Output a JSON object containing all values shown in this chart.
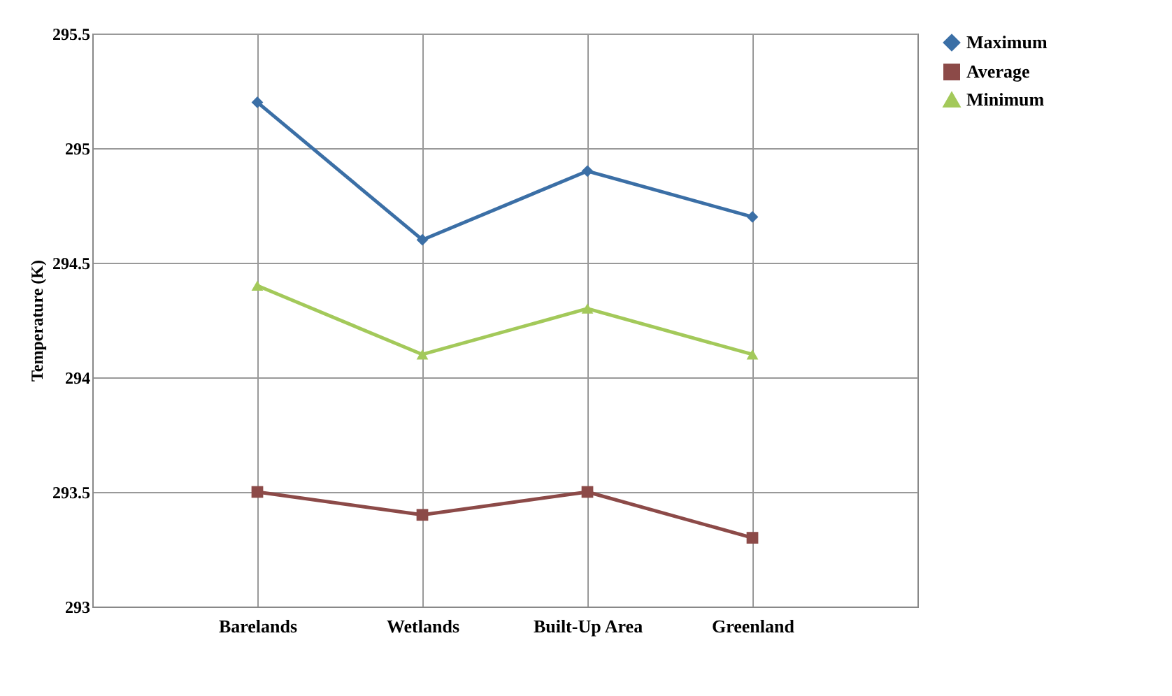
{
  "chart_data": {
    "type": "line",
    "ylabel": "Temperature (K)",
    "categories": [
      "Barelands",
      "Wetlands",
      "Built-Up Area",
      "Greenland"
    ],
    "series": [
      {
        "name": "Maximum",
        "color": "#3b6fa6",
        "marker": "diamond",
        "values": [
          295.2,
          294.6,
          294.9,
          294.7
        ]
      },
      {
        "name": "Average",
        "color": "#8c4a48",
        "marker": "square",
        "values": [
          293.5,
          293.4,
          293.5,
          293.3
        ]
      },
      {
        "name": "Minimum",
        "color": "#a3c95a",
        "marker": "triangle",
        "values": [
          294.4,
          294.1,
          294.3,
          294.1
        ]
      }
    ],
    "ylim": [
      293,
      295.5
    ],
    "yticks": [
      293,
      293.5,
      294,
      294.5,
      295,
      295.5
    ],
    "grid": true,
    "legend": "right"
  }
}
